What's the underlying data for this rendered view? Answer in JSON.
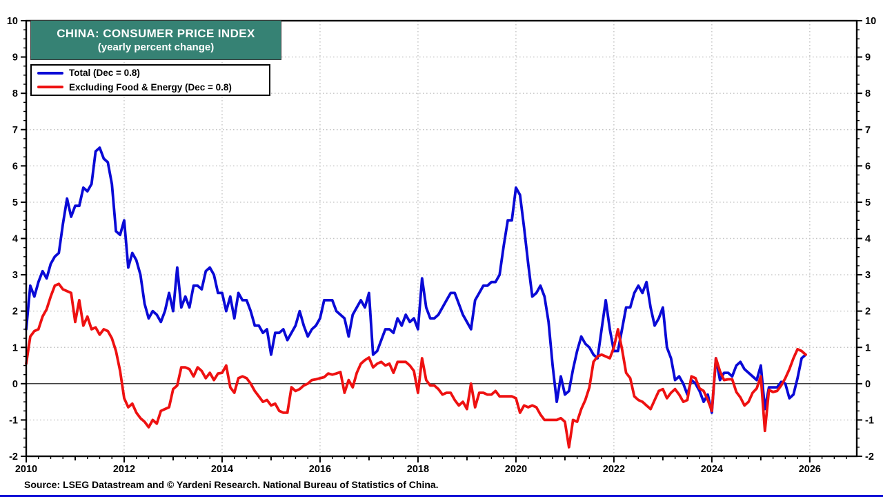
{
  "header": {
    "title_line1": "CHINA: CONSUMER PRICE INDEX",
    "title_line2": "(yearly percent change)",
    "title_bg_color": "#368274",
    "accent_blue": "#0a0ad6",
    "accent_red": "#ee1111"
  },
  "legend": {
    "items": [
      {
        "label": "Total (Dec = 0.8)",
        "color": "#0a0ad6"
      },
      {
        "label": "Excluding Food & Energy (Dec = 0.8)",
        "color": "#ee1111"
      }
    ]
  },
  "footer": {
    "source": "Source: LSEG Datastream and © Yardeni Research. National Bureau of Statistics of China."
  },
  "chart_data": {
    "type": "line",
    "title": "CHINA: CONSUMER PRICE INDEX (yearly percent change)",
    "xlabel": "",
    "ylabel": "",
    "xlim": [
      2010,
      2026.96
    ],
    "ylim": [
      -2,
      10
    ],
    "grid": "dotted",
    "grid_color": "#c4c4c4",
    "zero_line": true,
    "x_tick_labels": [
      "2010",
      "2012",
      "2014",
      "2016",
      "2018",
      "2020",
      "2022",
      "2024",
      "2026"
    ],
    "x_tick_years": [
      2010,
      2012,
      2014,
      2016,
      2018,
      2020,
      2022,
      2024,
      2026
    ],
    "y_tick_labels": [
      "-2",
      "-1",
      "0",
      "1",
      "2",
      "3",
      "4",
      "5",
      "6",
      "7",
      "8",
      "9",
      "10"
    ],
    "y_ticks": [
      -2,
      -1,
      0,
      1,
      2,
      3,
      4,
      5,
      6,
      7,
      8,
      9,
      10
    ],
    "x_start_year": 2010,
    "points_per_year": 12,
    "series": [
      {
        "name": "Total (Dec = 0.8)",
        "color": "#0a0ad6",
        "values": [
          1.5,
          2.7,
          2.4,
          2.8,
          3.1,
          2.9,
          3.3,
          3.5,
          3.6,
          4.4,
          5.1,
          4.6,
          4.9,
          4.9,
          5.4,
          5.3,
          5.5,
          6.4,
          6.5,
          6.2,
          6.1,
          5.5,
          4.2,
          4.1,
          4.5,
          3.2,
          3.6,
          3.4,
          3.0,
          2.2,
          1.8,
          2.0,
          1.9,
          1.7,
          2.0,
          2.5,
          2.0,
          3.2,
          2.1,
          2.4,
          2.1,
          2.7,
          2.7,
          2.6,
          3.1,
          3.2,
          3.0,
          2.5,
          2.5,
          2.0,
          2.4,
          1.8,
          2.5,
          2.3,
          2.3,
          2.0,
          1.6,
          1.6,
          1.4,
          1.5,
          0.8,
          1.4,
          1.4,
          1.5,
          1.2,
          1.4,
          1.6,
          2.0,
          1.6,
          1.3,
          1.5,
          1.6,
          1.8,
          2.3,
          2.3,
          2.3,
          2.0,
          1.9,
          1.8,
          1.3,
          1.9,
          2.1,
          2.3,
          2.1,
          2.5,
          0.8,
          0.9,
          1.2,
          1.5,
          1.5,
          1.4,
          1.8,
          1.6,
          1.9,
          1.7,
          1.8,
          1.5,
          2.9,
          2.1,
          1.8,
          1.8,
          1.9,
          2.1,
          2.3,
          2.5,
          2.5,
          2.2,
          1.9,
          1.7,
          1.5,
          2.3,
          2.5,
          2.7,
          2.7,
          2.8,
          2.8,
          3.0,
          3.8,
          4.5,
          4.5,
          5.4,
          5.2,
          4.3,
          3.3,
          2.4,
          2.5,
          2.7,
          2.4,
          1.7,
          0.5,
          -0.5,
          0.2,
          -0.3,
          -0.2,
          0.4,
          0.9,
          1.3,
          1.1,
          1.0,
          0.8,
          0.7,
          1.5,
          2.3,
          1.5,
          0.9,
          0.9,
          1.5,
          2.1,
          2.1,
          2.5,
          2.7,
          2.5,
          2.8,
          2.1,
          1.6,
          1.8,
          2.1,
          1.0,
          0.7,
          0.1,
          0.2,
          0.0,
          -0.3,
          0.1,
          0.0,
          -0.2,
          -0.5,
          -0.3,
          -0.8,
          0.7,
          0.1,
          0.3,
          0.3,
          0.2,
          0.5,
          0.6,
          0.4,
          0.3,
          0.2,
          0.1,
          0.5,
          -0.7,
          -0.1,
          -0.1,
          -0.1,
          0.05,
          0.0,
          -0.4,
          -0.3,
          0.15,
          0.7,
          0.8
        ]
      },
      {
        "name": "Excluding Food & Energy (Dec = 0.8)",
        "color": "#ee1111",
        "values": [
          0.55,
          1.3,
          1.45,
          1.5,
          1.85,
          2.05,
          2.4,
          2.7,
          2.75,
          2.6,
          2.55,
          2.5,
          1.7,
          2.3,
          1.6,
          1.85,
          1.5,
          1.55,
          1.35,
          1.5,
          1.45,
          1.25,
          0.9,
          0.35,
          -0.4,
          -0.65,
          -0.55,
          -0.8,
          -0.95,
          -1.05,
          -1.2,
          -1.0,
          -1.1,
          -0.75,
          -0.7,
          -0.65,
          -0.15,
          -0.05,
          0.45,
          0.45,
          0.4,
          0.2,
          0.45,
          0.35,
          0.15,
          0.3,
          0.1,
          0.28,
          0.3,
          0.5,
          -0.1,
          -0.25,
          0.15,
          0.2,
          0.15,
          0.0,
          -0.2,
          -0.35,
          -0.5,
          -0.45,
          -0.6,
          -0.55,
          -0.75,
          -0.8,
          -0.8,
          -0.1,
          -0.2,
          -0.15,
          -0.05,
          0.0,
          0.1,
          0.12,
          0.15,
          0.18,
          0.28,
          0.25,
          0.28,
          0.32,
          -0.25,
          0.1,
          -0.1,
          0.3,
          0.55,
          0.65,
          0.72,
          0.45,
          0.55,
          0.6,
          0.5,
          0.55,
          0.3,
          0.6,
          0.6,
          0.6,
          0.5,
          0.35,
          -0.25,
          0.7,
          0.1,
          -0.05,
          -0.05,
          -0.15,
          -0.3,
          -0.25,
          -0.25,
          -0.45,
          -0.6,
          -0.5,
          -0.7,
          0.0,
          -0.65,
          -0.25,
          -0.25,
          -0.3,
          -0.3,
          -0.2,
          -0.35,
          -0.35,
          -0.35,
          -0.35,
          -0.4,
          -0.8,
          -0.6,
          -0.65,
          -0.6,
          -0.65,
          -0.85,
          -1.0,
          -1.0,
          -1.0,
          -1.0,
          -0.95,
          -1.05,
          -1.75,
          -1.0,
          -1.05,
          -0.7,
          -0.45,
          -0.1,
          0.6,
          0.75,
          0.8,
          0.75,
          0.7,
          1.0,
          1.5,
          0.95,
          0.3,
          0.15,
          -0.35,
          -0.45,
          -0.5,
          -0.6,
          -0.7,
          -0.45,
          -0.2,
          -0.15,
          -0.4,
          -0.25,
          -0.15,
          -0.3,
          -0.5,
          -0.45,
          0.2,
          0.15,
          -0.13,
          -0.2,
          -0.45,
          -0.75,
          0.7,
          0.34,
          0.1,
          0.12,
          0.12,
          -0.23,
          -0.38,
          -0.6,
          -0.5,
          -0.25,
          -0.13,
          0.2,
          -1.3,
          -0.17,
          -0.23,
          -0.2,
          -0.05,
          0.15,
          0.4,
          0.7,
          0.95,
          0.9,
          0.8
        ]
      }
    ],
    "legend_position": "top-left"
  }
}
